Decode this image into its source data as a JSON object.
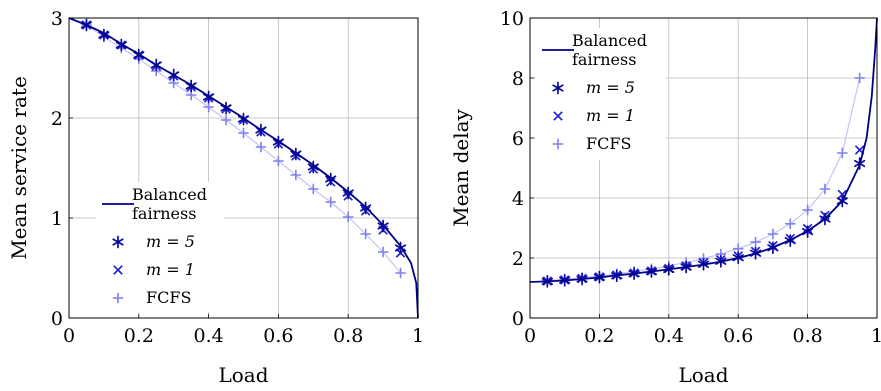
{
  "chart_data": [
    {
      "type": "line",
      "xlabel": "Load",
      "ylabel": "Mean service rate",
      "xlim": [
        0,
        1
      ],
      "ylim": [
        0,
        3
      ],
      "xticks": [
        "0",
        "0.2",
        "0.4",
        "0.6",
        "0.8",
        "1"
      ],
      "yticks": [
        "0",
        "1",
        "2",
        "3"
      ],
      "grid": true,
      "legend_position": "lower-left",
      "legend": {
        "bf_line1": "Balanced",
        "bf_line2": "fairness",
        "m5": "m = 5",
        "m1": "m = 1",
        "fcfs": "FCFS"
      },
      "series": [
        {
          "key": "bf",
          "style": "line",
          "x": [
            0,
            0.05,
            0.1,
            0.15,
            0.2,
            0.25,
            0.3,
            0.35,
            0.4,
            0.45,
            0.5,
            0.55,
            0.6,
            0.65,
            0.7,
            0.75,
            0.8,
            0.85,
            0.9,
            0.95,
            0.98,
            0.995,
            1.0
          ],
          "y": [
            3.0,
            2.93,
            2.85,
            2.74,
            2.64,
            2.53,
            2.43,
            2.33,
            2.22,
            2.11,
            2.0,
            1.88,
            1.77,
            1.65,
            1.53,
            1.4,
            1.26,
            1.11,
            0.93,
            0.72,
            0.55,
            0.35,
            0.0
          ]
        },
        {
          "key": "m5",
          "style": "asterisk",
          "x": [
            0.05,
            0.1,
            0.15,
            0.2,
            0.25,
            0.3,
            0.35,
            0.4,
            0.45,
            0.5,
            0.55,
            0.6,
            0.65,
            0.7,
            0.75,
            0.8,
            0.85,
            0.9,
            0.95
          ],
          "y": [
            2.93,
            2.83,
            2.73,
            2.63,
            2.53,
            2.43,
            2.32,
            2.21,
            2.1,
            1.99,
            1.88,
            1.76,
            1.64,
            1.51,
            1.39,
            1.25,
            1.1,
            0.92,
            0.7
          ]
        },
        {
          "key": "m1",
          "style": "cross",
          "x": [
            0.05,
            0.1,
            0.15,
            0.2,
            0.25,
            0.3,
            0.35,
            0.4,
            0.45,
            0.5,
            0.55,
            0.6,
            0.65,
            0.7,
            0.75,
            0.8,
            0.85,
            0.9,
            0.95
          ],
          "y": [
            2.93,
            2.83,
            2.73,
            2.63,
            2.52,
            2.42,
            2.31,
            2.2,
            2.09,
            1.98,
            1.86,
            1.74,
            1.62,
            1.49,
            1.36,
            1.22,
            1.07,
            0.88,
            0.65
          ]
        },
        {
          "key": "fcfs",
          "style": "plus",
          "x": [
            0.05,
            0.1,
            0.15,
            0.2,
            0.25,
            0.3,
            0.35,
            0.4,
            0.45,
            0.5,
            0.55,
            0.6,
            0.65,
            0.7,
            0.75,
            0.8,
            0.85,
            0.9,
            0.95
          ],
          "y": [
            2.93,
            2.81,
            2.7,
            2.59,
            2.47,
            2.35,
            2.23,
            2.11,
            1.98,
            1.85,
            1.71,
            1.57,
            1.43,
            1.29,
            1.16,
            1.01,
            0.84,
            0.66,
            0.45
          ]
        }
      ]
    },
    {
      "type": "line",
      "xlabel": "Load",
      "ylabel": "Mean delay",
      "xlim": [
        0,
        1
      ],
      "ylim": [
        0,
        10
      ],
      "xticks": [
        "0",
        "0.2",
        "0.4",
        "0.6",
        "0.8",
        "1"
      ],
      "yticks": [
        "0",
        "2",
        "4",
        "6",
        "8",
        "10"
      ],
      "grid": true,
      "legend_position": "top-left",
      "legend": {
        "bf_line1": "Balanced",
        "bf_line2": "fairness",
        "m5": "m = 5",
        "m1": "m = 1",
        "fcfs": "FCFS"
      },
      "series": [
        {
          "key": "bf",
          "style": "line",
          "x": [
            0,
            0.05,
            0.1,
            0.15,
            0.2,
            0.25,
            0.3,
            0.35,
            0.4,
            0.45,
            0.5,
            0.55,
            0.6,
            0.65,
            0.7,
            0.75,
            0.8,
            0.85,
            0.9,
            0.95,
            0.97,
            0.985,
            0.995,
            1.0
          ],
          "y": [
            1.2,
            1.22,
            1.25,
            1.3,
            1.35,
            1.42,
            1.48,
            1.55,
            1.62,
            1.7,
            1.78,
            1.88,
            2.0,
            2.15,
            2.35,
            2.6,
            2.9,
            3.3,
            3.9,
            5.1,
            6.0,
            7.4,
            9.0,
            10.0
          ]
        },
        {
          "key": "m5",
          "style": "asterisk",
          "x": [
            0.05,
            0.1,
            0.15,
            0.2,
            0.25,
            0.3,
            0.35,
            0.4,
            0.45,
            0.5,
            0.55,
            0.6,
            0.65,
            0.7,
            0.75,
            0.8,
            0.85,
            0.9,
            0.95
          ],
          "y": [
            1.22,
            1.26,
            1.3,
            1.36,
            1.41,
            1.48,
            1.55,
            1.62,
            1.7,
            1.79,
            1.89,
            2.01,
            2.16,
            2.34,
            2.58,
            2.88,
            3.3,
            3.9,
            5.15
          ]
        },
        {
          "key": "m1",
          "style": "cross",
          "x": [
            0.05,
            0.1,
            0.15,
            0.2,
            0.25,
            0.3,
            0.35,
            0.4,
            0.45,
            0.5,
            0.55,
            0.6,
            0.65,
            0.7,
            0.75,
            0.8,
            0.85,
            0.9,
            0.95
          ],
          "y": [
            1.23,
            1.27,
            1.32,
            1.37,
            1.43,
            1.5,
            1.57,
            1.65,
            1.73,
            1.83,
            1.94,
            2.07,
            2.22,
            2.41,
            2.65,
            2.98,
            3.42,
            4.12,
            5.6
          ]
        },
        {
          "key": "fcfs",
          "style": "plus",
          "x": [
            0.05,
            0.1,
            0.15,
            0.2,
            0.25,
            0.3,
            0.35,
            0.4,
            0.45,
            0.5,
            0.55,
            0.6,
            0.65,
            0.7,
            0.75,
            0.8,
            0.85,
            0.9,
            0.95
          ],
          "y": [
            1.25,
            1.29,
            1.34,
            1.4,
            1.47,
            1.55,
            1.64,
            1.74,
            1.85,
            1.98,
            2.13,
            2.31,
            2.53,
            2.8,
            3.14,
            3.6,
            4.3,
            5.5,
            8.0
          ]
        }
      ]
    }
  ],
  "colors": {
    "bf": "#00008b",
    "m5": "#0a0a9c",
    "m1": "#1f1fd6",
    "fcfs": "#8080ef",
    "fcfs_line": "#c5c5f3",
    "grid": "#bdbdbd"
  }
}
